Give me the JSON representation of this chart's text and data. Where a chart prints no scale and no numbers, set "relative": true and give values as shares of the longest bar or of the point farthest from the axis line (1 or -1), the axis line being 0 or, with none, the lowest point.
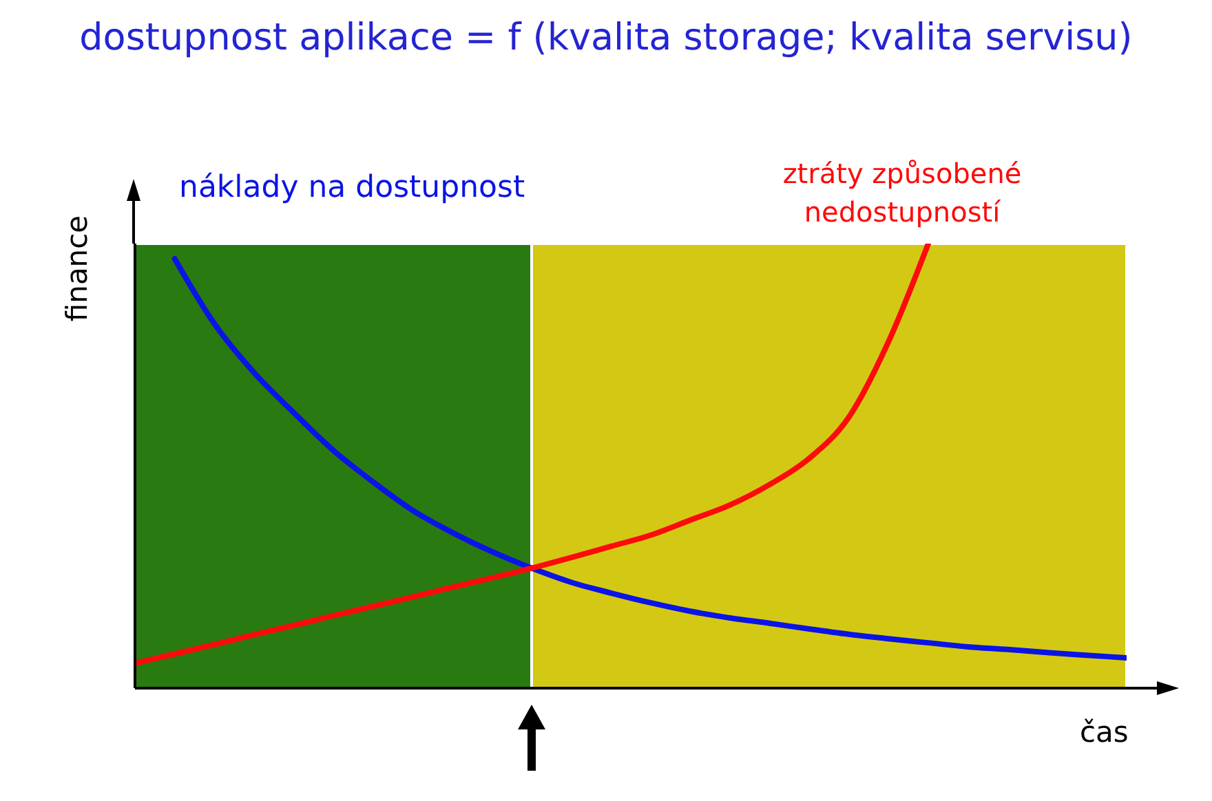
{
  "chart_data": {
    "type": "line",
    "title": "dostupnost aplikace = f (kvalita storage; kvalita servisu)",
    "xlabel": "čas",
    "ylabel": "finance",
    "relative": true,
    "categories": [
      null,
      null,
      null,
      null,
      null,
      null,
      null,
      null,
      null,
      null,
      null,
      null,
      null,
      null,
      null,
      null,
      null,
      null,
      null,
      null,
      null,
      null,
      null,
      null,
      null,
      null
    ],
    "series": [
      {
        "name": "náklady na dostupnost",
        "color": "#0a14e6",
        "values": [
          null,
          0.966,
          0.82,
          0.71,
          0.62,
          0.535,
          0.464,
          0.4,
          0.35,
          0.307,
          0.27,
          0.238,
          0.214,
          0.192,
          0.173,
          0.158,
          0.146,
          0.133,
          0.121,
          0.111,
          0.102,
          0.093,
          0.087,
          0.08,
          0.074,
          0.068
        ]
      },
      {
        "name": "ztráty způsobené nedostupností",
        "color": "#ff0a0a",
        "values": [
          0.056,
          0.077,
          0.098,
          0.12,
          0.141,
          0.163,
          0.184,
          0.205,
          0.227,
          0.248,
          0.27,
          0.294,
          0.319,
          0.344,
          0.378,
          0.412,
          0.458,
          0.517,
          0.61,
          0.78,
          1,
          null,
          null,
          null,
          null,
          null
        ]
      }
    ],
    "legend": false
  }
}
